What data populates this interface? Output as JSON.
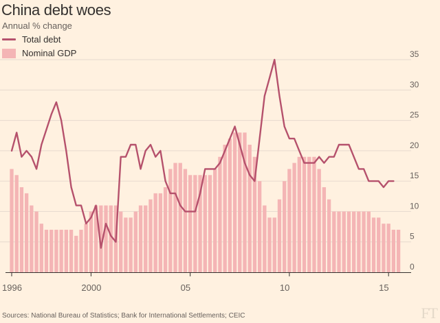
{
  "colors": {
    "background": "#fff1e0",
    "line": "#b5516c",
    "bars": "#f4b5b5",
    "grid": "#e6d9ce",
    "axis": "#33302e",
    "text": "#66605c"
  },
  "header": {
    "title": "China debt woes",
    "subtitle": "Annual % change"
  },
  "legend": {
    "line_label": "Total debt",
    "bar_label": "Nominal GDP"
  },
  "footer": {
    "source": "Sources: National Bureau of Statistics; Bank for International Settlements; CEIC",
    "logo": "FT"
  },
  "chart_data": {
    "type": "bar+line",
    "title": "China debt woes",
    "subtitle": "Annual % change",
    "xlabel": "",
    "ylabel": "",
    "ylim": [
      0,
      35
    ],
    "yticks": [
      0,
      5,
      10,
      15,
      20,
      25,
      30,
      35
    ],
    "ytick_labels": [
      "0",
      "5",
      "10",
      "15",
      "20",
      "25",
      "30",
      "35"
    ],
    "grid": true,
    "x_range": [
      1996,
      2015.75
    ],
    "xticks": [
      1996,
      2000,
      2005,
      2010,
      2015
    ],
    "xtick_labels": [
      "1996",
      "2000",
      "05",
      "10",
      "15"
    ],
    "series": [
      {
        "name": "Nominal GDP",
        "kind": "bar",
        "frequency": "quarterly",
        "start": 1996.0,
        "values": [
          17,
          16,
          14,
          13,
          11,
          10,
          8,
          7,
          7,
          7,
          7,
          7,
          7,
          6,
          7,
          8,
          10,
          11,
          11,
          11,
          11,
          11,
          10,
          9,
          9,
          10,
          11,
          11,
          12,
          13,
          13,
          14,
          17,
          18,
          18,
          17,
          16,
          16,
          16,
          16,
          16,
          17,
          19,
          21,
          22,
          23,
          23,
          23,
          21,
          19,
          15,
          11,
          9,
          9,
          12,
          15,
          17,
          18,
          19,
          19,
          19,
          19,
          17,
          14,
          12,
          10,
          10,
          10,
          10,
          10,
          10,
          10,
          10,
          9,
          9,
          8,
          8,
          7,
          7
        ]
      },
      {
        "name": "Total debt",
        "kind": "line",
        "x": [
          1996,
          1996.25,
          1996.5,
          1996.75,
          1997,
          1997.25,
          1997.5,
          1998,
          1998.25,
          1998.5,
          1998.75,
          1999,
          1999.25,
          1999.5,
          1999.75,
          2000,
          2000.25,
          2000.5,
          2000.75,
          2001,
          2001.25,
          2001.5,
          2001.75,
          2002,
          2002.25,
          2002.5,
          2002.75,
          2003,
          2003.25,
          2003.5,
          2003.75,
          2004,
          2004.25,
          2004.5,
          2004.75,
          2005,
          2005.25,
          2005.5,
          2005.75,
          2006,
          2006.25,
          2006.5,
          2006.75,
          2007,
          2007.25,
          2007.5,
          2007.75,
          2008,
          2008.25,
          2008.5,
          2008.75,
          2009,
          2009.25,
          2009.5,
          2009.75,
          2010,
          2010.25,
          2010.5,
          2010.75,
          2011,
          2011.25,
          2011.5,
          2011.75,
          2012,
          2012.25,
          2012.5,
          2012.75,
          2013,
          2013.25,
          2013.5,
          2013.75,
          2014,
          2014.25,
          2014.5,
          2014.75,
          2015,
          2015.25
        ],
        "values": [
          20,
          23,
          19,
          20,
          19,
          17,
          21,
          26,
          28,
          25,
          20,
          14,
          11,
          11,
          8,
          9,
          11,
          4,
          8,
          6,
          5,
          19,
          19,
          21,
          21,
          17,
          20,
          21,
          19,
          20,
          15,
          13,
          13,
          11,
          10,
          10,
          10,
          13,
          17,
          17,
          17,
          18,
          20,
          22,
          24,
          21,
          18,
          16,
          15,
          22,
          29,
          32,
          35,
          29,
          24,
          22,
          22,
          20,
          18,
          18,
          18,
          19,
          18,
          19,
          19,
          21,
          21,
          21,
          19,
          17,
          17,
          15,
          15,
          15,
          14,
          15,
          15
        ]
      }
    ]
  }
}
